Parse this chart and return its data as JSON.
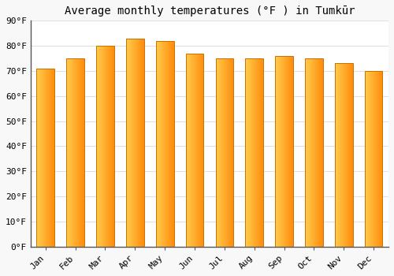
{
  "title": "Average monthly temperatures (°F ) in Tumkūr",
  "months": [
    "Jan",
    "Feb",
    "Mar",
    "Apr",
    "May",
    "Jun",
    "Jul",
    "Aug",
    "Sep",
    "Oct",
    "Nov",
    "Dec"
  ],
  "values": [
    71,
    75,
    80,
    83,
    82,
    77,
    75,
    75,
    76,
    75,
    73,
    70
  ],
  "ylim": [
    0,
    90
  ],
  "yticks": [
    0,
    10,
    20,
    30,
    40,
    50,
    60,
    70,
    80,
    90
  ],
  "ytick_labels": [
    "0°F",
    "10°F",
    "20°F",
    "30°F",
    "40°F",
    "50°F",
    "60°F",
    "70°F",
    "80°F",
    "90°F"
  ],
  "bg_color": "#f8f8f8",
  "plot_bg_color": "#ffffff",
  "grid_color": "#e0e0e0",
  "bar_color_left": "#FFC020",
  "bar_color_right": "#FF8C00",
  "bar_edge_color": "#CC7000",
  "title_fontsize": 10,
  "tick_fontsize": 8,
  "bar_width": 0.6
}
